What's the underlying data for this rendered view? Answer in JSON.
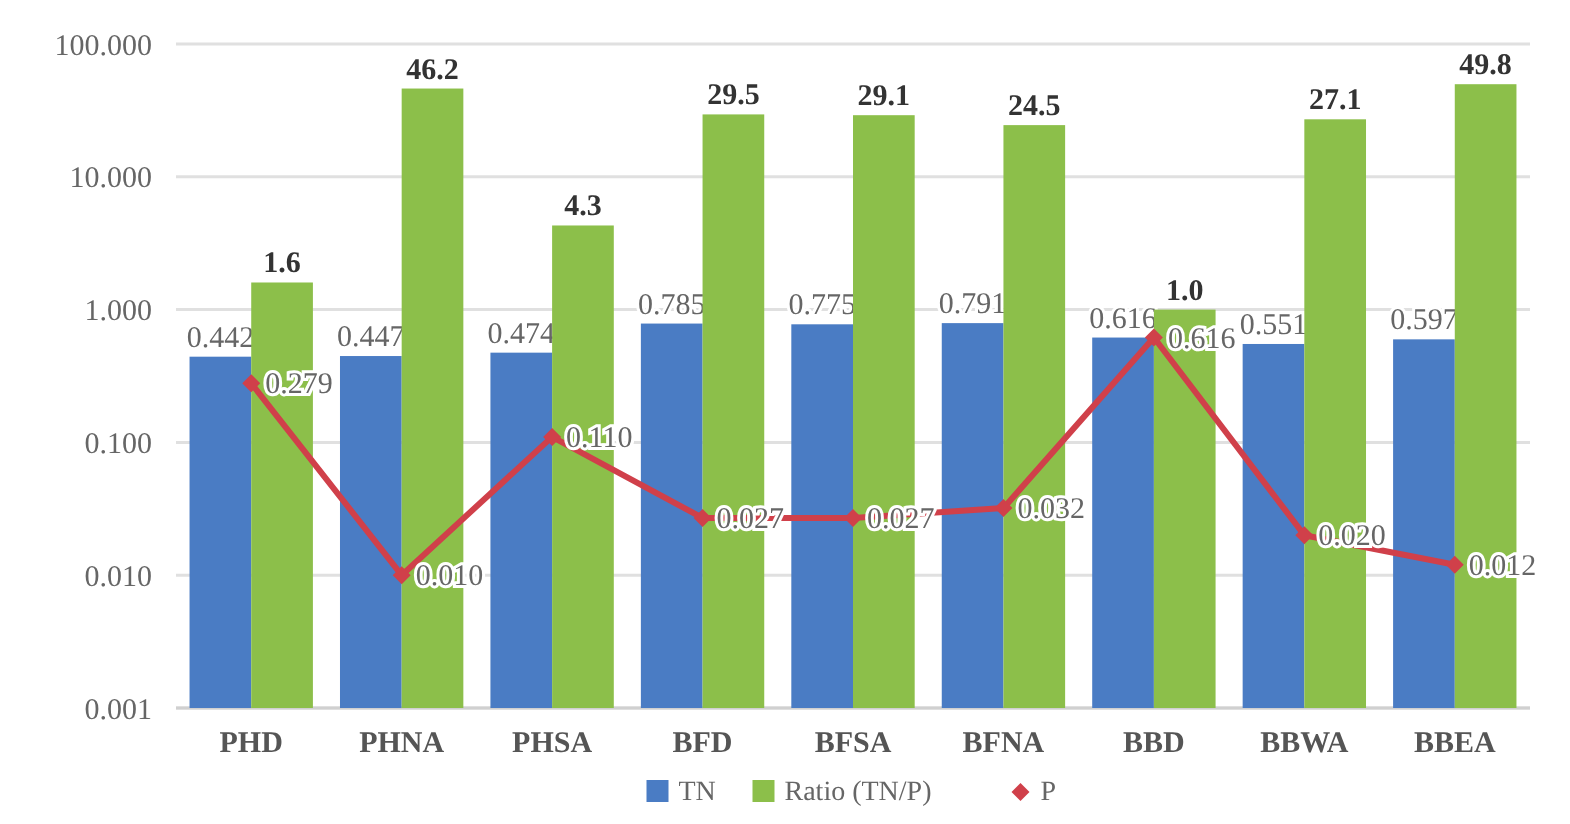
{
  "chart_data": {
    "type": "bar",
    "categories": [
      "PHD",
      "PHNA",
      "PHSA",
      "BFD",
      "BFSA",
      "BFNA",
      "BBD",
      "BBWA",
      "BBEA"
    ],
    "series": [
      {
        "name": "TN",
        "color": "#4a7cc4",
        "values": [
          0.442,
          0.447,
          0.474,
          0.785,
          0.775,
          0.791,
          0.616,
          0.551,
          0.597
        ],
        "value_labels": [
          "0.442",
          "0.447",
          "0.474",
          "0.785",
          "0.775",
          "0.791",
          "0.616",
          "0.551",
          "0.597"
        ]
      },
      {
        "name": "Ratio (TN/P)",
        "color": "#8cbf4a",
        "values": [
          1.6,
          46.2,
          4.3,
          29.5,
          29.1,
          24.5,
          1.0,
          27.1,
          49.8
        ],
        "value_labels": [
          "1.6",
          "46.2",
          "4.3",
          "29.5",
          "29.1",
          "24.5",
          "1.0",
          "27.1",
          "49.8"
        ]
      },
      {
        "name": "P",
        "type": "line",
        "color": "#d0404a",
        "values": [
          0.279,
          0.01,
          0.11,
          0.027,
          0.027,
          0.032,
          0.616,
          0.02,
          0.012
        ],
        "value_labels": [
          "0.279",
          "0.010",
          "0.110",
          "0.027",
          "0.027",
          "0.032",
          "0.616",
          "0.020",
          "0.012"
        ]
      }
    ],
    "log": true,
    "ylim": [
      0.001,
      100
    ],
    "yticks": [
      {
        "value": 0.001,
        "label": "0.001"
      },
      {
        "value": 0.01,
        "label": "0.010"
      },
      {
        "value": 0.1,
        "label": "0.100"
      },
      {
        "value": 1,
        "label": "1.000"
      },
      {
        "value": 10,
        "label": "10.000"
      },
      {
        "value": 100,
        "label": "100.000"
      }
    ],
    "grid": "y",
    "legend": "bottom",
    "marker": "diamond",
    "line_style": "solid"
  }
}
